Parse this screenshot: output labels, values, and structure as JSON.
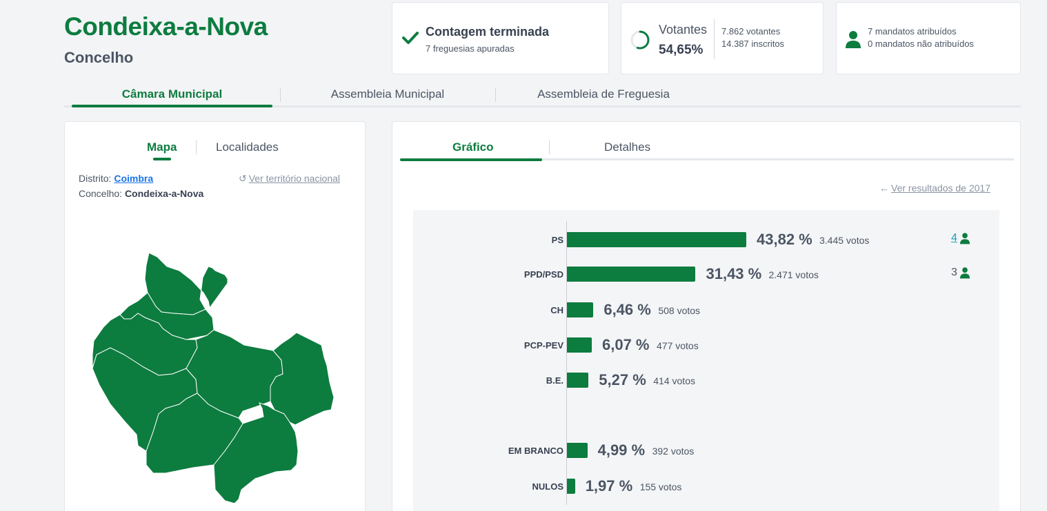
{
  "header": {
    "title": "Condeixa-a-Nova",
    "subtitle": "Concelho"
  },
  "status_cards": {
    "count": {
      "title": "Contagem terminada",
      "subtitle": "7 freguesias apuradas",
      "icon": "check-icon"
    },
    "votes": {
      "label": "Votantes",
      "percent": "54,65%",
      "voters": "7.862 votantes",
      "registered": "14.387 inscritos",
      "turnout_fraction": 0.5465,
      "icon": "progress-ring-icon"
    },
    "seats": {
      "assigned": "7 mandatos atribuídos",
      "unassigned": "0 mandatos não atribuídos",
      "icon": "person-icon"
    }
  },
  "main_tabs": [
    {
      "label": "Câmara Municipal",
      "active": true
    },
    {
      "label": "Assembleia Municipal",
      "active": false
    },
    {
      "label": "Assembleia de Freguesia",
      "active": false
    }
  ],
  "left_panel": {
    "tabs": [
      {
        "label": "Mapa",
        "active": true
      },
      {
        "label": "Localidades",
        "active": false
      }
    ],
    "district_label": "Distrito:",
    "district_value": "Coimbra",
    "municipality_label": "Concelho:",
    "municipality_value": "Condeixa-a-Nova",
    "national_link": "Ver território nacional",
    "map_color": "#0d7c3f"
  },
  "right_panel": {
    "tabs": [
      {
        "label": "Gráfico",
        "active": true
      },
      {
        "label": "Detalhes",
        "active": false
      }
    ],
    "previous_results_link": "Ver resultados de 2017"
  },
  "chart_data": {
    "type": "bar",
    "orientation": "horizontal",
    "categories": [
      "PS",
      "PPD/PSD",
      "CH",
      "PCP-PEV",
      "B.E.",
      "EM BRANCO",
      "NULOS"
    ],
    "values": [
      43.82,
      31.43,
      6.46,
      6.07,
      5.27,
      4.99,
      1.97
    ],
    "value_labels": [
      "43,82 %",
      "31,43 %",
      "6,46 %",
      "6,07 %",
      "5,27 %",
      "4,99 %",
      "1,97 %"
    ],
    "votes_labels": [
      "3.445 votos",
      "2.471 votos",
      "508 votos",
      "477 votos",
      "414 votos",
      "392 votos",
      "155 votos"
    ],
    "seats": [
      "4",
      "3",
      null,
      null,
      null,
      null,
      null
    ],
    "bar_color": "#0d7c3f",
    "grid": false
  }
}
